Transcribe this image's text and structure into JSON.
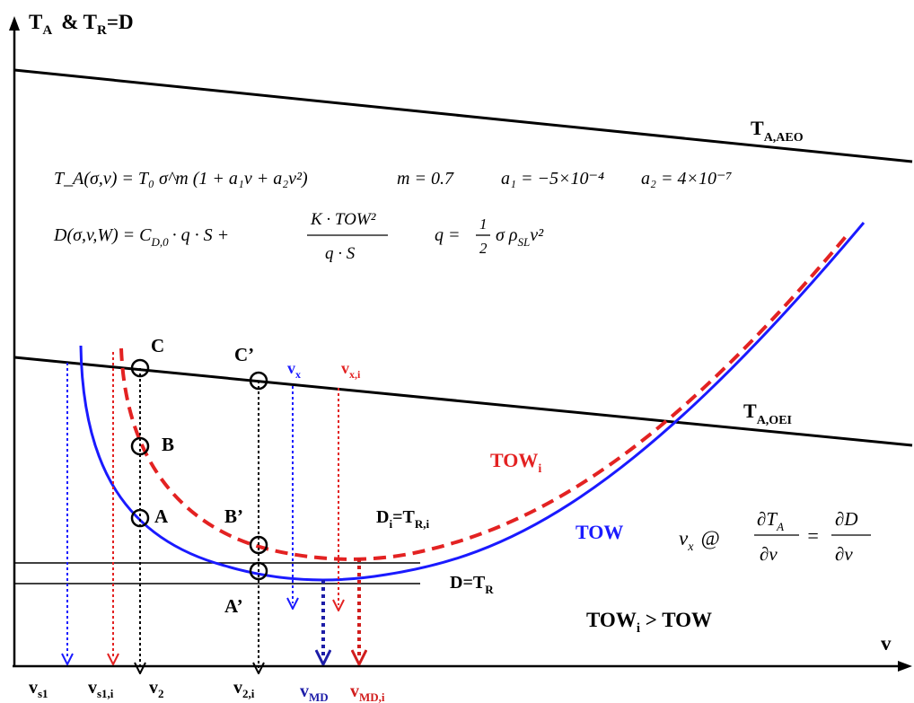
{
  "axes": {
    "y_title_main": "T",
    "y_title_sub1": "A",
    "y_title_mid": "& T",
    "y_title_sub2": "R",
    "y_title_end": "=D",
    "x_title": "v"
  },
  "thrust_lines": {
    "aeo_label": "T",
    "aeo_sub": "A,AEO",
    "oei_label": "T",
    "oei_sub": "A,OEI"
  },
  "equations": {
    "thrust": "T_A(σ,v) = T₀ σ^m (1 + a₁v + a₂v²)",
    "m_value": "m = 0.7",
    "a1_value": "a₁ = −5×10⁻⁴",
    "a2_value": "a₂ = 4×10⁻⁷",
    "drag_lhs": "D(σ,v,W) = C",
    "drag_sub": "D,0",
    "drag_mid": "· q · S +",
    "drag_num": "K · TOW²",
    "drag_den": "q · S",
    "q_lhs": "q =",
    "q_frac_num": "1",
    "q_frac_den": "2",
    "q_rest": "σ ρ",
    "q_sub": "SL",
    "q_end": "v²",
    "vx_lhs": "v",
    "vx_sub": "x",
    "vx_at": "@",
    "vx_num1": "∂T",
    "vx_num1_sub": "A",
    "vx_den1": "∂v",
    "vx_eq": "=",
    "vx_num2": "∂D",
    "vx_den2": "∂v"
  },
  "curves": {
    "tow_label": "TOW",
    "towi_label": "TOW",
    "towi_sub": "i",
    "d_label": "D=T",
    "d_sub": "R",
    "di_label": "D",
    "di_sub1": "i",
    "di_mid": "=T",
    "di_sub2": "R,i"
  },
  "points": {
    "A": "A",
    "B": "B",
    "C": "C",
    "A_prime": "A’",
    "B_prime": "B’",
    "C_prime": "C’"
  },
  "speed_labels": {
    "vs1": "v",
    "vs1_sub": "s1",
    "vs1i": "v",
    "vs1i_sub": "s1,i",
    "v2": "v",
    "v2_sub": "2",
    "v2i": "v",
    "v2i_sub": "2,i",
    "vmd": "v",
    "vmd_sub": "MD",
    "vmdi": "v",
    "vmdi_sub": "MD,i",
    "vx": "v",
    "vx_sub": "x",
    "vxi": "v",
    "vxi_sub": "x,i"
  },
  "note": {
    "text": "TOW",
    "sub": "i",
    "rest": " > TOW"
  },
  "colors": {
    "black": "#000000",
    "blue": "#1a1aff",
    "red": "#e32222",
    "dark_blue": "#1d1da8",
    "dark_red": "#d11d1d"
  }
}
